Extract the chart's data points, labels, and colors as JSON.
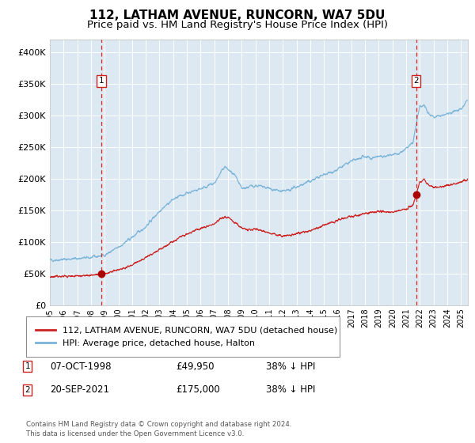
{
  "title": "112, LATHAM AVENUE, RUNCORN, WA7 5DU",
  "subtitle": "Price paid vs. HM Land Registry's House Price Index (HPI)",
  "title_fontsize": 11,
  "subtitle_fontsize": 9.5,
  "plot_bg_color": "#dce8f2",
  "hpi_color": "#7ab4d8",
  "price_color": "#cc2222",
  "marker_color": "#aa0000",
  "vline_color": "#dd2222",
  "ylim": [
    0,
    420000
  ],
  "yticks": [
    0,
    50000,
    100000,
    150000,
    200000,
    250000,
    300000,
    350000,
    400000
  ],
  "ytick_labels": [
    "£0",
    "£50K",
    "£100K",
    "£150K",
    "£200K",
    "£250K",
    "£300K",
    "£350K",
    "£400K"
  ],
  "sale1_date": 1998.77,
  "sale1_price": 49950,
  "sale2_date": 2021.72,
  "sale2_price": 175000,
  "legend_entries": [
    "112, LATHAM AVENUE, RUNCORN, WA7 5DU (detached house)",
    "HPI: Average price, detached house, Halton"
  ],
  "table_rows": [
    {
      "num": "1",
      "date": "07-OCT-1998",
      "price": "£49,950",
      "hpi": "38% ↓ HPI"
    },
    {
      "num": "2",
      "date": "20-SEP-2021",
      "price": "£175,000",
      "hpi": "38% ↓ HPI"
    }
  ],
  "footer": "Contains HM Land Registry data © Crown copyright and database right 2024.\nThis data is licensed under the Open Government Licence v3.0.",
  "xstart": 1995.0,
  "xend": 2025.5
}
